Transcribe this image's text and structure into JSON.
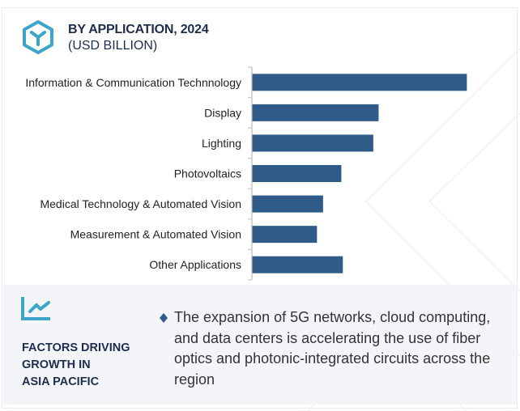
{
  "header": {
    "title": "BY APPLICATION, 2024",
    "subtitle": "(USD BILLION)",
    "icon": "cube-icon"
  },
  "colors": {
    "bar": "#2e5b88",
    "accent": "#3ba6c8",
    "title": "#1f2d4d",
    "panel_bg": "#f3f5f9"
  },
  "chart_data": {
    "type": "bar",
    "orientation": "horizontal",
    "title": "BY APPLICATION, 2024",
    "subtitle": "(USD BILLION)",
    "xlabel": "",
    "ylabel": "",
    "value_axis_labeled": false,
    "note": "No value axis or data labels shown; values are relative estimates from bar lengths",
    "categories": [
      "Information & Communication Technnology",
      "Display",
      "Lighting",
      "Photovoltaics",
      "Medical Technology & Automated Vision",
      "Measurement & Automated Vision",
      "Other Applications"
    ],
    "values": [
      28.2,
      16.6,
      15.9,
      11.7,
      9.3,
      8.5,
      11.9
    ],
    "xlim": [
      0,
      33
    ],
    "grid": false,
    "legend": "none"
  },
  "factors": {
    "icon": "trend-line-icon",
    "heading_lines": [
      "FACTORS DRIVING",
      "GROWTH IN",
      "ASIA PACIFIC"
    ],
    "bullet_icon": "diamond-bullet-icon",
    "bullet_text": "The expansion of 5G networks, cloud computing, and data centers is accelerating the use of fiber optics and photonic-integrated circuits across the region"
  }
}
